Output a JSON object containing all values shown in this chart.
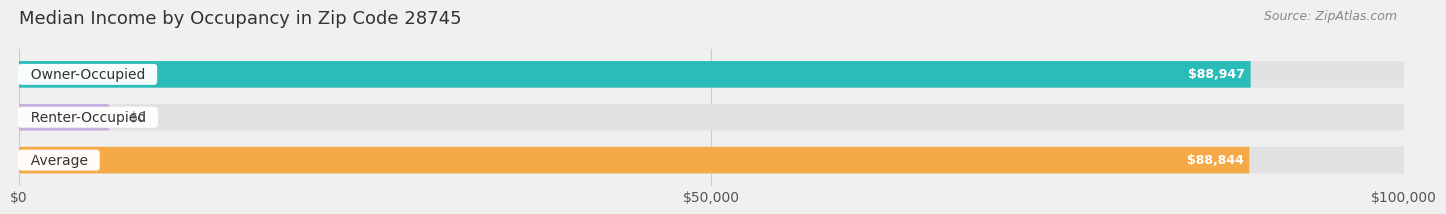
{
  "title": "Median Income by Occupancy in Zip Code 28745",
  "source": "Source: ZipAtlas.com",
  "categories": [
    "Owner-Occupied",
    "Renter-Occupied",
    "Average"
  ],
  "values": [
    88947,
    0,
    88844
  ],
  "bar_colors": [
    "#2abcb8",
    "#c9aee0",
    "#f5a947"
  ],
  "bar_labels": [
    "$88,947",
    "$0",
    "$88,844"
  ],
  "xlim": [
    0,
    100000
  ],
  "xticks": [
    0,
    50000,
    100000
  ],
  "xtick_labels": [
    "$0",
    "$50,000",
    "$100,000"
  ],
  "background_color": "#f0f0f0",
  "bar_bg_color": "#e2e2e2",
  "title_fontsize": 13,
  "source_fontsize": 9,
  "label_fontsize": 10,
  "value_fontsize": 9,
  "bar_height": 0.62,
  "bar_gap": 0.18
}
